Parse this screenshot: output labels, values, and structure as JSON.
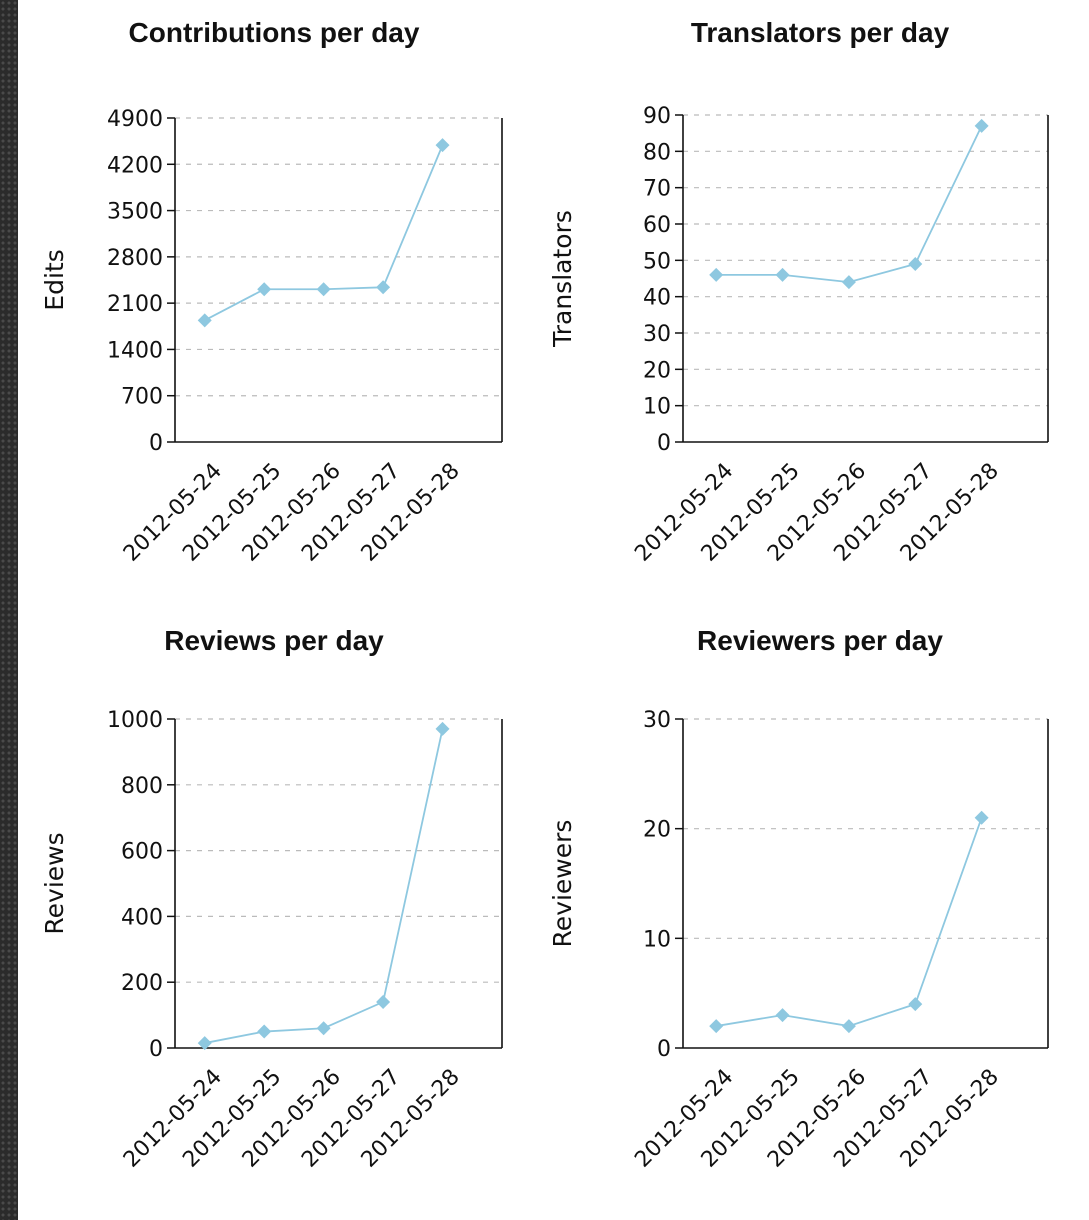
{
  "chart_data": [
    {
      "type": "line",
      "title": "Contributions per day",
      "xlabel": "",
      "ylabel": "Edits",
      "categories": [
        "2012-05-24",
        "2012-05-25",
        "2012-05-26",
        "2012-05-27",
        "2012-05-28"
      ],
      "values": [
        1840,
        2310,
        2310,
        2340,
        4490
      ],
      "ylim": [
        0,
        4900
      ],
      "yticks": [
        0,
        700,
        1400,
        2100,
        2800,
        3500,
        4200,
        4900
      ],
      "grid": true,
      "color": "#8ec8e0"
    },
    {
      "type": "line",
      "title": "Translators per day",
      "xlabel": "",
      "ylabel": "Translators",
      "categories": [
        "2012-05-24",
        "2012-05-25",
        "2012-05-26",
        "2012-05-27",
        "2012-05-28"
      ],
      "values": [
        46,
        46,
        44,
        49,
        87
      ],
      "ylim": [
        0,
        90
      ],
      "yticks": [
        0,
        10,
        20,
        30,
        40,
        50,
        60,
        70,
        80,
        90
      ],
      "grid": true,
      "color": "#8ec8e0"
    },
    {
      "type": "line",
      "title": "Reviews per day",
      "xlabel": "",
      "ylabel": "Reviews",
      "categories": [
        "2012-05-24",
        "2012-05-25",
        "2012-05-26",
        "2012-05-27",
        "2012-05-28"
      ],
      "values": [
        15,
        50,
        60,
        140,
        970
      ],
      "ylim": [
        0,
        1000
      ],
      "yticks": [
        0,
        200,
        400,
        600,
        800,
        1000
      ],
      "grid": true,
      "color": "#8ec8e0"
    },
    {
      "type": "line",
      "title": "Reviewers per day",
      "xlabel": "",
      "ylabel": "Reviewers",
      "categories": [
        "2012-05-24",
        "2012-05-25",
        "2012-05-26",
        "2012-05-27",
        "2012-05-28"
      ],
      "values": [
        2,
        3,
        2,
        4,
        21
      ],
      "ylim": [
        0,
        30
      ],
      "yticks": [
        0,
        10,
        20,
        30
      ],
      "grid": true,
      "color": "#8ec8e0"
    }
  ]
}
